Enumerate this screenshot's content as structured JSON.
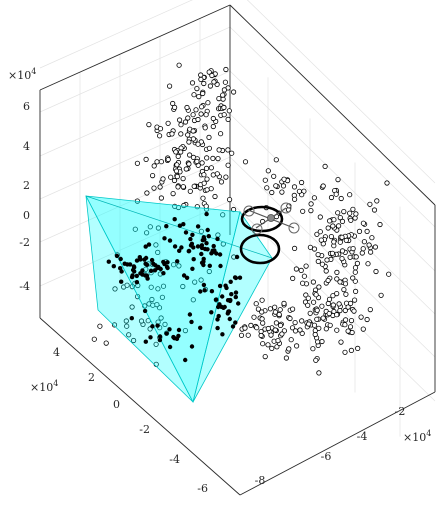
{
  "chart_data": {
    "type": "scatter",
    "projection": "3d",
    "title": "",
    "grid": true,
    "axes": {
      "z": {
        "ticks": [
          "-4",
          "-2",
          "0",
          "2",
          "4",
          "6"
        ],
        "exponent_base": "×10",
        "exponent_power": "4",
        "range": [
          -50000,
          60000
        ]
      },
      "y": {
        "ticks": [
          "4",
          "2",
          "0",
          "-2",
          "-4",
          "-6"
        ],
        "exponent_base": "×10",
        "exponent_power": "4",
        "range": [
          -65000,
          55000
        ]
      },
      "x": {
        "ticks": [
          "-8",
          "-6",
          "-4",
          "-2"
        ],
        "exponent_base": "×10",
        "exponent_power": "4",
        "range": [
          -90000,
          -10000
        ]
      }
    },
    "series": [
      {
        "role": "points-outside-region",
        "marker": "open-circle",
        "color": "#000000",
        "approx_count": 560
      },
      {
        "role": "points-inside-region",
        "marker": "filled-circle",
        "color": "#000000",
        "approx_count": 170
      }
    ],
    "region": {
      "shape": "tetrahedron",
      "fill": "#00ffff",
      "opacity": 0.45,
      "edge_color": "#00d8d8"
    },
    "markers": [
      {
        "shape": "ring",
        "color": "#000000",
        "count": 2
      },
      {
        "shape": "quadrotor",
        "color": "#808080"
      }
    ]
  }
}
